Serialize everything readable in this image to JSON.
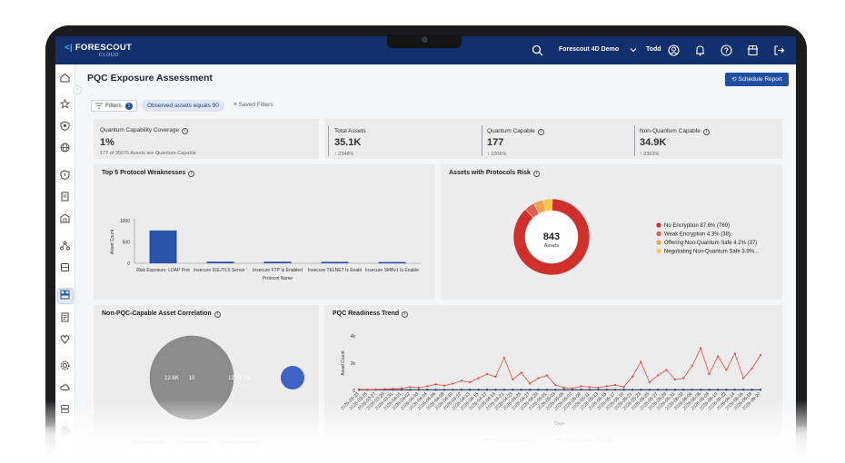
{
  "header": {
    "logo_text": "FORESCOUT",
    "logo_sub": "CLOUD",
    "tenant": "Forescout 4D Demo",
    "user": "Todd"
  },
  "page": {
    "title": "PQC Exposure Assessment",
    "schedule_label": "Schedule Report"
  },
  "filterbar": {
    "filters_label": "Filters",
    "filters_count": "1",
    "active_filter": "Observed assets equals 90",
    "saved_filters_label": "Saved Filters"
  },
  "metrics": {
    "coverage": {
      "label": "Quantum Capability Coverage",
      "value": "1%",
      "sub": "177 of 35076 Assets are Quantum-Capable"
    },
    "total": {
      "label": "Total Assets",
      "value": "35.1K",
      "sub": "2348%"
    },
    "capable": {
      "label": "Quantum Capable",
      "value": "177",
      "sub": "1006%"
    },
    "noncapable": {
      "label": "Non-Quantum Capable",
      "value": "34.9K",
      "sub": "2363%"
    }
  },
  "colors": {
    "accent": "#1f4fa0",
    "header": "#12306d",
    "no_enc": "#d0302c",
    "weak": "#e65a4c",
    "offering": "#f5a04a",
    "negotiating": "#f7c84c",
    "line_red": "#e8473f",
    "line_dark": "#1f3a66"
  },
  "cards": {
    "weaknesses_title": "Top 5 Protocol Weaknesses",
    "risk_title": "Assets with Protocols Risk",
    "correlation_title": "Non-PQC-Capable Asset Correlation",
    "trend_title": "PQC Readiness Trend"
  },
  "chart_data": [
    {
      "type": "bar",
      "title": "Top 5 Protocol Weaknesses",
      "xlabel": "Protocol Name",
      "ylabel": "Asset Count",
      "ylim": [
        0,
        1000
      ],
      "yticks": [
        "0",
        "500",
        "1000"
      ],
      "categories": [
        "Risk Exposure: LDAP Prot",
        "Insecure SSL/TLS Server '",
        "Insecure FTP Is Enabled",
        "Insecure TELNET Is Enabl",
        "Insecure SMBv1 Is Enable"
      ],
      "values": [
        769,
        38,
        37,
        34,
        30
      ],
      "grid": false
    },
    {
      "type": "pie",
      "title": "Assets with Protocols Risk",
      "center_value": "843",
      "center_label": "Assets",
      "legend_position": "right",
      "slices": [
        {
          "label": "No Encryption 87.6% (769)",
          "value": 769
        },
        {
          "label": "Weak Encryption 4.3% (38)",
          "value": 38
        },
        {
          "label": "Offering Non-Quantum Safe 4.2% (37)",
          "value": 37
        },
        {
          "label": "Negotiating Non-Quantum Safe 3.9%...",
          "value": 34
        }
      ]
    },
    {
      "type": "scatter",
      "title": "Non-PQC-Capable Asset Correlation",
      "bubbles": [
        {
          "label": "12.6K",
          "value": 12600
        },
        {
          "label": "10",
          "value": 10
        },
        {
          "label": "127",
          "value": 127
        },
        {
          "label": "1.1K",
          "value": 1100
        }
      ],
      "legend": [
        "Websites IPs",
        "Critical Assets",
        "Internet Exposure"
      ],
      "legend_position": "bottom"
    },
    {
      "type": "line",
      "title": "PQC Readiness Trend",
      "xlabel": "Days",
      "ylabel": "Asset Count",
      "ylim": [
        0,
        4000
      ],
      "yticks": [
        "0",
        "2k",
        "4k"
      ],
      "legend_position": "bottom",
      "x": [
        "2026-03-23",
        "2026-03-25",
        "2026-03-27",
        "2026-03-29",
        "2026-03-31",
        "2026-04-01",
        "2026-04-02",
        "2026-04-03",
        "2026-04-04",
        "2026-04-06",
        "2026-04-08",
        "2026-04-10",
        "2026-04-12",
        "2026-04-13",
        "2026-04-15",
        "2026-04-17",
        "2026-04-19",
        "2026-04-21",
        "2026-04-23",
        "2026-04-25",
        "2026-04-27",
        "2026-04-29",
        "2026-05-01",
        "2026-05-03",
        "2026-05-05",
        "2026-05-07",
        "2026-05-09",
        "2026-05-11",
        "2026-05-13",
        "2026-05-15",
        "2026-05-17",
        "2026-05-19",
        "2026-05-21",
        "2026-05-23",
        "2026-05-25",
        "2026-05-27",
        "2026-05-29",
        "2026-05-31",
        "2026-06-02",
        "2026-06-04",
        "2026-06-06",
        "2026-06-08",
        "2026-06-10",
        "2026-06-12",
        "2026-06-14",
        "2026-06-16",
        "2026-06-18",
        "2026-06-20"
      ],
      "series": [
        {
          "name": "Quantum Capable",
          "values": [
            50,
            50,
            50,
            50,
            50,
            50,
            50,
            50,
            50,
            50,
            50,
            50,
            50,
            50,
            50,
            50,
            50,
            50,
            50,
            50,
            50,
            50,
            50,
            50,
            50,
            50,
            50,
            50,
            50,
            50,
            50,
            50,
            50,
            50,
            50,
            50,
            50,
            50,
            50,
            50,
            50,
            50,
            50,
            50,
            50,
            50,
            50,
            50
          ]
        },
        {
          "name": "Non-Quantum Capable",
          "values": [
            80,
            60,
            70,
            90,
            120,
            150,
            250,
            200,
            300,
            450,
            350,
            500,
            700,
            600,
            900,
            1200,
            1000,
            2400,
            800,
            1300,
            500,
            900,
            1100,
            400,
            200,
            150,
            300,
            250,
            200,
            300,
            400,
            250,
            1000,
            2100,
            600,
            1100,
            1500,
            800,
            900,
            1800,
            3100,
            1200,
            2500,
            1500,
            2700,
            900,
            1600,
            2600
          ]
        }
      ]
    }
  ]
}
